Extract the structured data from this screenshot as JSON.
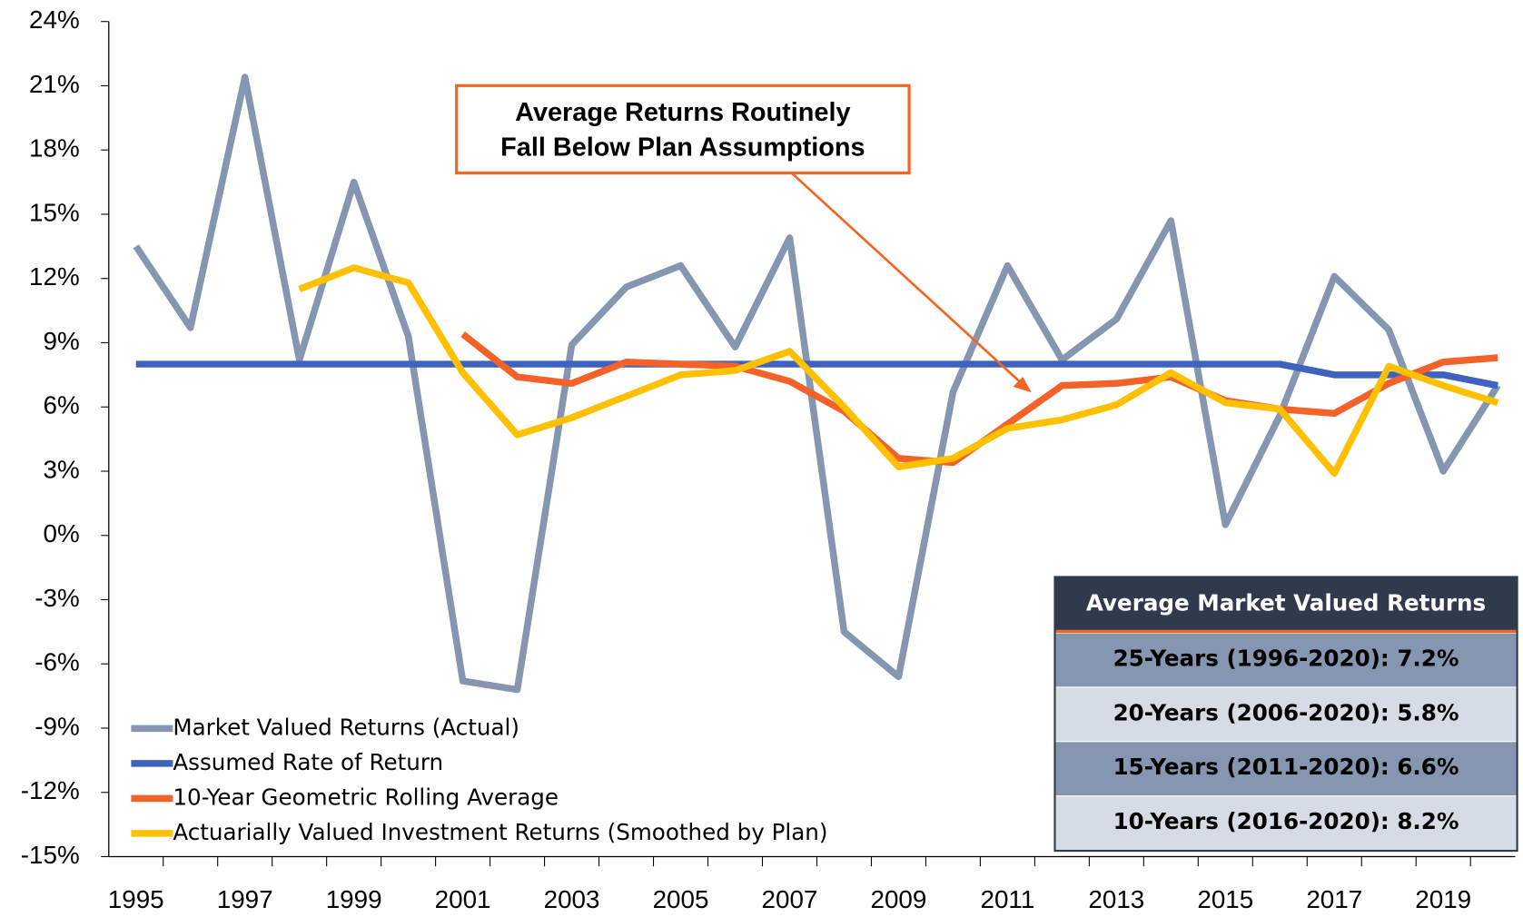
{
  "chart_data": {
    "type": "line",
    "categories": [
      "1995",
      null,
      "1997",
      null,
      "1999",
      null,
      "2001",
      null,
      "2003",
      null,
      "2005",
      null,
      "2007",
      null,
      "2009",
      null,
      "2011",
      null,
      "2013",
      null,
      "2015",
      null,
      "2017",
      null,
      "2019",
      null
    ],
    "series": [
      {
        "name": "Market Valued Returns (Actual)",
        "color": "#8496b0",
        "values": [
          13.5,
          9.7,
          21.4,
          8.2,
          16.5,
          9.3,
          -6.8,
          -7.2,
          8.9,
          11.6,
          12.6,
          8.8,
          13.9,
          -4.5,
          -6.6,
          6.7,
          12.6,
          8.2,
          10.1,
          14.7,
          0.5,
          5.6,
          12.1,
          9.6,
          3.0,
          7.0
        ]
      },
      {
        "name": "Assumed Rate of Return",
        "color": "#3e62c0",
        "values": [
          8.0,
          8.0,
          8.0,
          8.0,
          8.0,
          8.0,
          8.0,
          8.0,
          8.0,
          8.0,
          8.0,
          8.0,
          8.0,
          8.0,
          8.0,
          8.0,
          8.0,
          8.0,
          8.0,
          8.0,
          8.0,
          8.0,
          7.5,
          7.5,
          7.5,
          7.0
        ]
      },
      {
        "name": "10-Year Geometric Rolling Average",
        "color": "#f4622a",
        "values": [
          null,
          null,
          null,
          null,
          null,
          null,
          9.4,
          7.4,
          7.1,
          8.1,
          8.0,
          7.9,
          7.2,
          5.8,
          3.6,
          3.4,
          5.2,
          7.0,
          7.1,
          7.4,
          6.3,
          5.9,
          5.7,
          7.1,
          8.1,
          8.3
        ]
      },
      {
        "name": "Actuarially Valued Investment Returns (Smoothed by Plan)",
        "color": "#ffc000",
        "values": [
          null,
          null,
          null,
          11.5,
          12.5,
          11.8,
          7.6,
          4.7,
          5.5,
          6.5,
          7.5,
          7.7,
          8.6,
          6.0,
          3.2,
          3.6,
          5.0,
          5.4,
          6.1,
          7.6,
          6.2,
          5.9,
          2.9,
          7.9,
          7.0,
          6.2
        ]
      }
    ],
    "ylim": [
      -15,
      24
    ],
    "yticks": [
      {
        "value": -15,
        "label": "-15%"
      },
      {
        "value": -12,
        "label": "-12%"
      },
      {
        "value": -9,
        "label": "-9%"
      },
      {
        "value": -6,
        "label": "-6%"
      },
      {
        "value": -3,
        "label": "-3%"
      },
      {
        "value": 0,
        "label": "0%"
      },
      {
        "value": 3,
        "label": "3%"
      },
      {
        "value": 6,
        "label": "6%"
      },
      {
        "value": 9,
        "label": "9%"
      },
      {
        "value": 12,
        "label": "12%"
      },
      {
        "value": 15,
        "label": "15%"
      },
      {
        "value": 18,
        "label": "18%"
      },
      {
        "value": 21,
        "label": "21%"
      },
      {
        "value": 24,
        "label": "24%"
      }
    ],
    "legend": "lower left",
    "annotation": [
      "Average Returns Routinely",
      "Fall Below Plan Assumptions"
    ],
    "table": {
      "header": "Average Market Valued Returns",
      "rows": [
        "25-Years (1996-2020): 7.2%",
        "20-Years (2006-2020): 5.8%",
        "15-Years (2011-2020): 6.6%",
        "10-Years (2016-2020): 8.2%"
      ]
    }
  }
}
